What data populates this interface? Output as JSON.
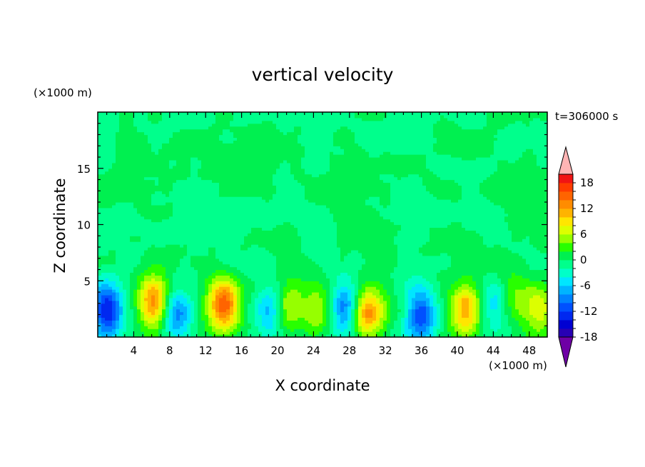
{
  "chart_data": {
    "type": "heatmap",
    "title": "vertical velocity",
    "xlabel": "X coordinate",
    "ylabel": "Z coordinate",
    "x_unit": "(×1000 m)",
    "y_unit": "(×1000 m)",
    "time_label": "t=306000 s",
    "xlim": [
      0,
      50
    ],
    "ylim": [
      0,
      20
    ],
    "x_ticks": [
      4,
      8,
      12,
      16,
      20,
      24,
      28,
      32,
      36,
      40,
      44,
      48
    ],
    "y_ticks": [
      5,
      10,
      15
    ],
    "colorbar": {
      "levels": [
        -20,
        -18,
        -16,
        -14,
        -12,
        -10,
        -8,
        -6,
        -4,
        -2,
        0,
        2,
        4,
        6,
        8,
        10,
        12,
        14,
        16,
        18,
        20
      ],
      "tick_labels": [
        18,
        12,
        6,
        0,
        -6,
        -12,
        -18
      ],
      "colors": [
        "#6e00a5",
        "#2800b4",
        "#0000d2",
        "#0028f0",
        "#0050ff",
        "#0082ff",
        "#00b4ff",
        "#00e6ff",
        "#00ffc8",
        "#00ff8c",
        "#00f050",
        "#28ff00",
        "#96ff00",
        "#dcff00",
        "#ffe600",
        "#ffb400",
        "#ff8c00",
        "#ff6400",
        "#ff3c00",
        "#f01414",
        "#ffb4b4"
      ]
    },
    "features": [
      {
        "x": 1.0,
        "z": 2.4,
        "w": -14
      },
      {
        "x": 6.2,
        "z": 3.2,
        "w": 13
      },
      {
        "x": 8.8,
        "z": 2.0,
        "w": -10
      },
      {
        "x": 14.0,
        "z": 3.0,
        "w": 15
      },
      {
        "x": 19.2,
        "z": 2.5,
        "w": -8
      },
      {
        "x": 21.2,
        "z": 2.9,
        "w": 6
      },
      {
        "x": 24.5,
        "z": 2.4,
        "w": 5
      },
      {
        "x": 27.5,
        "z": 2.7,
        "w": -10
      },
      {
        "x": 30.0,
        "z": 2.1,
        "w": 12
      },
      {
        "x": 36.0,
        "z": 2.0,
        "w": -12
      },
      {
        "x": 41.0,
        "z": 2.4,
        "w": 12
      },
      {
        "x": 44.2,
        "z": 3.0,
        "w": -6
      },
      {
        "x": 46.3,
        "z": 3.5,
        "w": 4
      },
      {
        "x": 49.0,
        "z": 2.6,
        "w": 8
      }
    ]
  }
}
